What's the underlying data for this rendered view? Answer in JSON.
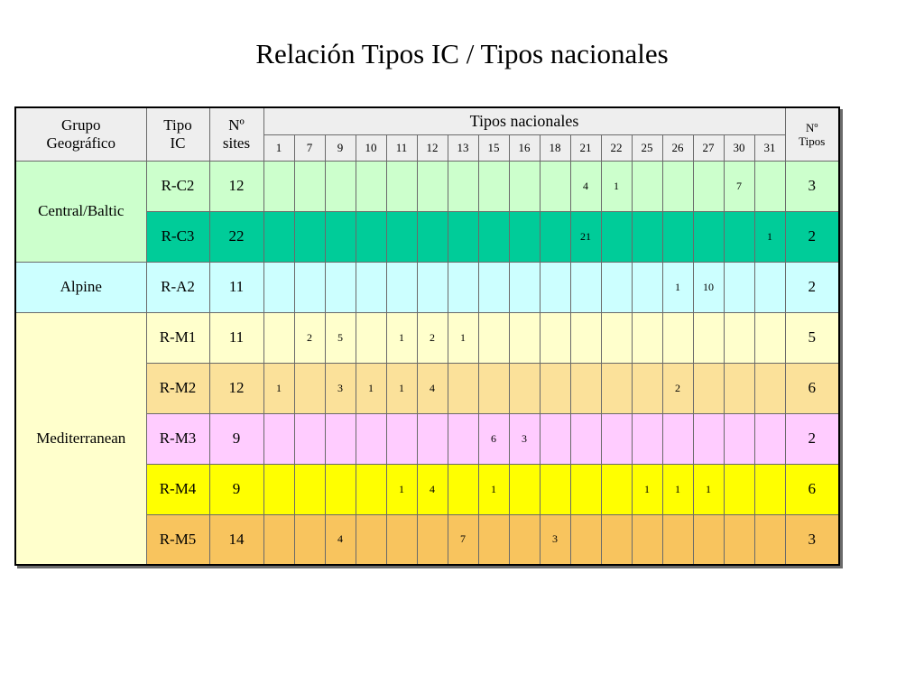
{
  "title": "Relación Tipos IC / Tipos nacionales",
  "headers": {
    "grupo": "Grupo\nGeográfico",
    "tipo": "Tipo\nIC",
    "sites": "Nº\nsites",
    "tipos_nacionales": "Tipos nacionales",
    "n_tipos": "Nº\nTipos",
    "national_types": [
      "1",
      "7",
      "9",
      "10",
      "11",
      "12",
      "13",
      "15",
      "16",
      "18",
      "21",
      "22",
      "25",
      "26",
      "27",
      "30",
      "31"
    ]
  },
  "groups": [
    {
      "name": "Central/Baltic",
      "rowspan": 2,
      "color": "#ccffcc"
    },
    {
      "name": "Alpine",
      "rowspan": 1,
      "color": "#ccffff"
    },
    {
      "name": "Mediterranean",
      "rowspan": 5,
      "color": "#ffffcc"
    }
  ],
  "rows": [
    {
      "tipo": "R-C2",
      "sites": "12",
      "color": "#ccffcc",
      "values": [
        "",
        "",
        "",
        "",
        "",
        "",
        "",
        "",
        "",
        "",
        "4",
        "1",
        "",
        "",
        "",
        "7",
        ""
      ],
      "count": "3"
    },
    {
      "tipo": "R-C3",
      "sites": "22",
      "color": "#00cc99",
      "values": [
        "",
        "",
        "",
        "",
        "",
        "",
        "",
        "",
        "",
        "",
        "21",
        "",
        "",
        "",
        "",
        "",
        "1"
      ],
      "count": "2"
    },
    {
      "tipo": "R-A2",
      "sites": "11",
      "color": "#ccffff",
      "values": [
        "",
        "",
        "",
        "",
        "",
        "",
        "",
        "",
        "",
        "",
        "",
        "",
        "",
        "1",
        "10",
        "",
        ""
      ],
      "count": "2"
    },
    {
      "tipo": "R-M1",
      "sites": "11",
      "color": "#ffffcc",
      "values": [
        "",
        "2",
        "5",
        "",
        "1",
        "2",
        "1",
        "",
        "",
        "",
        "",
        "",
        "",
        "",
        "",
        "",
        ""
      ],
      "count": "5"
    },
    {
      "tipo": "R-M2",
      "sites": "12",
      "color": "#fbe19a",
      "values": [
        "1",
        "",
        "3",
        "1",
        "1",
        "4",
        "",
        "",
        "",
        "",
        "",
        "",
        "",
        "2",
        "",
        "",
        ""
      ],
      "count": "6"
    },
    {
      "tipo": "R-M3",
      "sites": "9",
      "color": "#ffccff",
      "values": [
        "",
        "",
        "",
        "",
        "",
        "",
        "",
        "6",
        "3",
        "",
        "",
        "",
        "",
        "",
        "",
        "",
        ""
      ],
      "count": "2"
    },
    {
      "tipo": "R-M4",
      "sites": "9",
      "color": "#ffff00",
      "values": [
        "",
        "",
        "",
        "",
        "1",
        "4",
        "",
        "1",
        "",
        "",
        "",
        "",
        "1",
        "1",
        "1",
        "",
        ""
      ],
      "count": "6"
    },
    {
      "tipo": "R-M5",
      "sites": "14",
      "color": "#f8c45e",
      "values": [
        "",
        "",
        "4",
        "",
        "",
        "",
        "7",
        "",
        "",
        "3",
        "",
        "",
        "",
        "",
        "",
        "",
        ""
      ],
      "count": "3"
    }
  ]
}
